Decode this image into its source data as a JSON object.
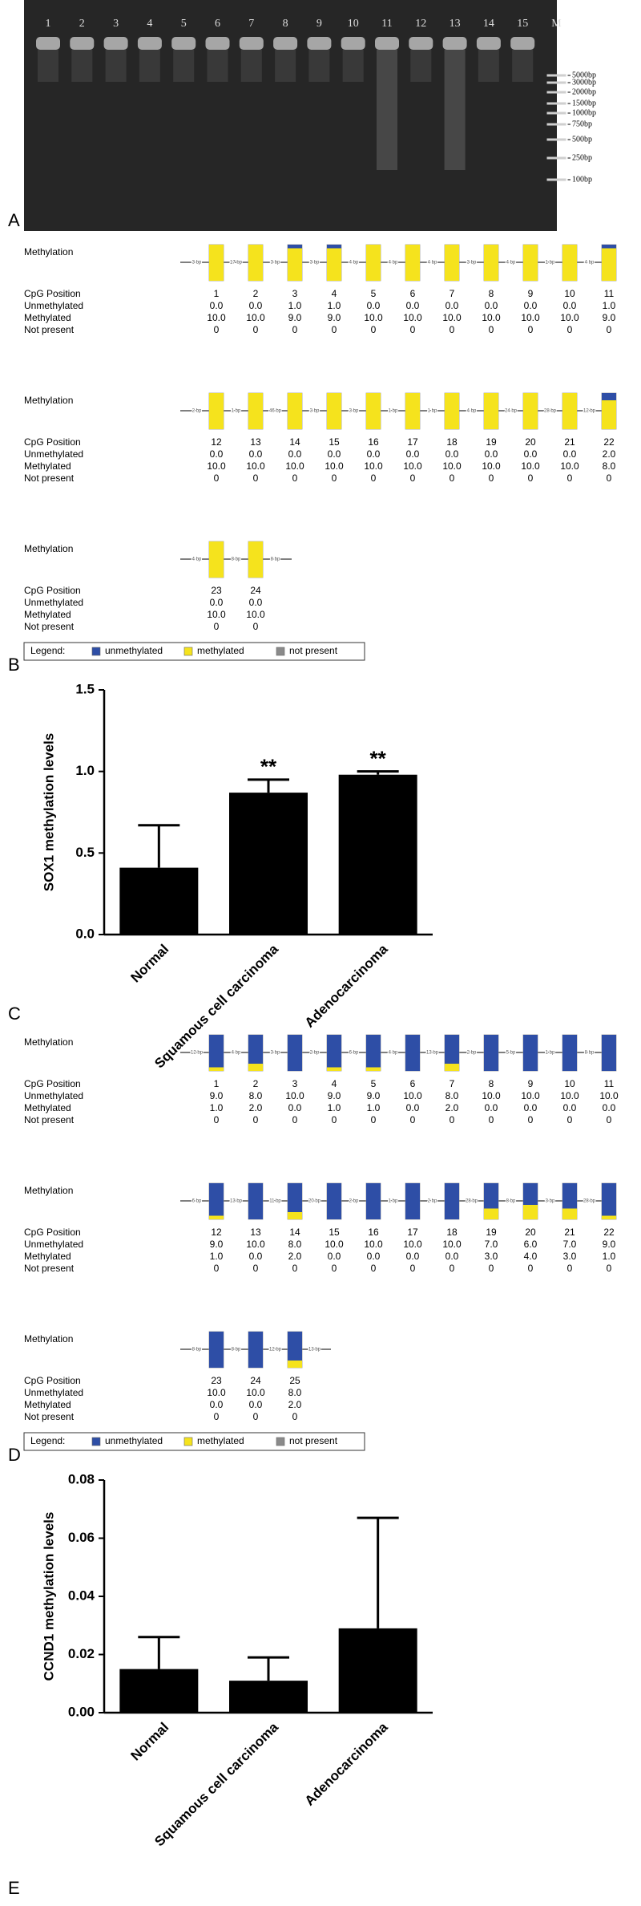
{
  "panel_labels": [
    "A",
    "B",
    "C",
    "D",
    "E"
  ],
  "gel": {
    "lane_labels": [
      "1",
      "2",
      "3",
      "4",
      "5",
      "6",
      "7",
      "8",
      "9",
      "10",
      "11",
      "12",
      "13",
      "14",
      "15",
      "M"
    ],
    "marker_labels": [
      "5000bp",
      "3000bp",
      "2000bp",
      "1500bp",
      "1000bp",
      "750bp",
      "500bp",
      "250bp",
      "100bp"
    ]
  },
  "methylation_sox1": {
    "row_label": "Methylation",
    "labels": [
      "CpG Position",
      "Unmethylated",
      "Methylated",
      "Not present"
    ],
    "legend": {
      "title": "Legend:",
      "items": [
        "unmethylated",
        "methylated",
        "not present"
      ]
    },
    "rows": [
      {
        "gaps": [
          "3 bp",
          "17 bp",
          "3 bp",
          "3 bp",
          "4 bp",
          "4 bp",
          "4 bp",
          "3 bp",
          "4 bp",
          "1 bp",
          "4 bp"
        ],
        "positions": [
          1,
          2,
          3,
          4,
          5,
          6,
          7,
          8,
          9,
          10,
          11
        ],
        "unmethylated": [
          "0.0",
          "0.0",
          "1.0",
          "1.0",
          "0.0",
          "0.0",
          "0.0",
          "0.0",
          "0.0",
          "0.0",
          "1.0"
        ],
        "methylated": [
          "10.0",
          "10.0",
          "9.0",
          "9.0",
          "10.0",
          "10.0",
          "10.0",
          "10.0",
          "10.0",
          "10.0",
          "9.0"
        ],
        "not_present": [
          0,
          0,
          0,
          0,
          0,
          0,
          0,
          0,
          0,
          0,
          0
        ]
      },
      {
        "gaps": [
          "2 bp",
          "1 bp",
          "46 bp",
          "3 bp",
          "3 bp",
          "1 bp",
          "1 bp",
          "4 bp",
          "24 bp",
          "28 bp",
          "12 bp"
        ],
        "positions": [
          12,
          13,
          14,
          15,
          16,
          17,
          18,
          19,
          20,
          21,
          22
        ],
        "unmethylated": [
          "0.0",
          "0.0",
          "0.0",
          "0.0",
          "0.0",
          "0.0",
          "0.0",
          "0.0",
          "0.0",
          "0.0",
          "2.0"
        ],
        "methylated": [
          "10.0",
          "10.0",
          "10.0",
          "10.0",
          "10.0",
          "10.0",
          "10.0",
          "10.0",
          "10.0",
          "10.0",
          "8.0"
        ],
        "not_present": [
          0,
          0,
          0,
          0,
          0,
          0,
          0,
          0,
          0,
          0,
          0
        ]
      },
      {
        "gaps": [
          "4 bp",
          "8 bp",
          "8 bp"
        ],
        "positions": [
          23,
          24
        ],
        "unmethylated": [
          "0.0",
          "0.0"
        ],
        "methylated": [
          "10.0",
          "10.0"
        ],
        "not_present": [
          0,
          0
        ]
      }
    ]
  },
  "methylation_ccnd1": {
    "row_label": "Methylation",
    "labels": [
      "CpG Position",
      "Unmethylated",
      "Methylated",
      "Not present"
    ],
    "legend": {
      "title": "Legend:",
      "items": [
        "unmethylated",
        "methylated",
        "not present"
      ]
    },
    "rows": [
      {
        "gaps": [
          "12 bp",
          "4 bp",
          "3 bp",
          "2 bp",
          "6 bp",
          "4 bp",
          "13 bp",
          "2 bp",
          "5 bp",
          "1 bp",
          "8 bp"
        ],
        "positions": [
          1,
          2,
          3,
          4,
          5,
          6,
          7,
          8,
          9,
          10,
          11
        ],
        "unmethylated": [
          "9.0",
          "8.0",
          "10.0",
          "9.0",
          "9.0",
          "10.0",
          "8.0",
          "10.0",
          "10.0",
          "10.0",
          "10.0"
        ],
        "methylated": [
          "1.0",
          "2.0",
          "0.0",
          "1.0",
          "1.0",
          "0.0",
          "2.0",
          "0.0",
          "0.0",
          "0.0",
          "0.0"
        ],
        "not_present": [
          0,
          0,
          0,
          0,
          0,
          0,
          0,
          0,
          0,
          0,
          0
        ]
      },
      {
        "gaps": [
          "6 bp",
          "13 bp",
          "11 bp",
          "20 bp",
          "2 bp",
          "1 bp",
          "2 bp",
          "28 bp",
          "8 bp",
          "3 bp",
          "28 bp"
        ],
        "positions": [
          12,
          13,
          14,
          15,
          16,
          17,
          18,
          19,
          20,
          21,
          22
        ],
        "unmethylated": [
          "9.0",
          "10.0",
          "8.0",
          "10.0",
          "10.0",
          "10.0",
          "10.0",
          "7.0",
          "6.0",
          "7.0",
          "9.0"
        ],
        "methylated": [
          "1.0",
          "0.0",
          "2.0",
          "0.0",
          "0.0",
          "0.0",
          "0.0",
          "3.0",
          "4.0",
          "3.0",
          "1.0"
        ],
        "not_present": [
          0,
          0,
          0,
          0,
          0,
          0,
          0,
          0,
          0,
          0,
          0
        ]
      },
      {
        "gaps": [
          "8 bp",
          "8 bp",
          "12 bp",
          "13 bp"
        ],
        "positions": [
          23,
          24,
          25
        ],
        "unmethylated": [
          "10.0",
          "10.0",
          "8.0"
        ],
        "methylated": [
          "0.0",
          "0.0",
          "2.0"
        ],
        "not_present": [
          0,
          0,
          0
        ]
      }
    ]
  },
  "chart_data": [
    {
      "type": "bar",
      "y_label": "SOX1 methylation levels",
      "categories": [
        "Normal",
        "Squamous cell carcinoma",
        "Adenocarcinoma"
      ],
      "values": [
        0.41,
        0.87,
        0.98
      ],
      "errors": [
        0.26,
        0.08,
        0.02
      ],
      "significance": [
        null,
        "**",
        "**"
      ],
      "color": "#000000",
      "ylim": [
        0,
        1.5
      ],
      "yticks": [
        {
          "value": 0,
          "label": "0.0"
        },
        0.5,
        {
          "value": 1,
          "label": "1.0"
        },
        1.5
      ]
    },
    {
      "type": "bar",
      "y_label": "CCND1 methylation levels",
      "categories": [
        "Normal",
        "Squamous cell carcinoma",
        "Adenocarcinoma"
      ],
      "values": [
        0.015,
        0.011,
        0.029
      ],
      "errors": [
        0.011,
        0.008,
        0.038
      ],
      "color": "#000000",
      "ylim": [
        0,
        0.08
      ],
      "yticks": [
        {
          "value": 0,
          "label": "0.00"
        },
        0.02,
        0.04,
        0.06,
        0.08
      ]
    }
  ]
}
